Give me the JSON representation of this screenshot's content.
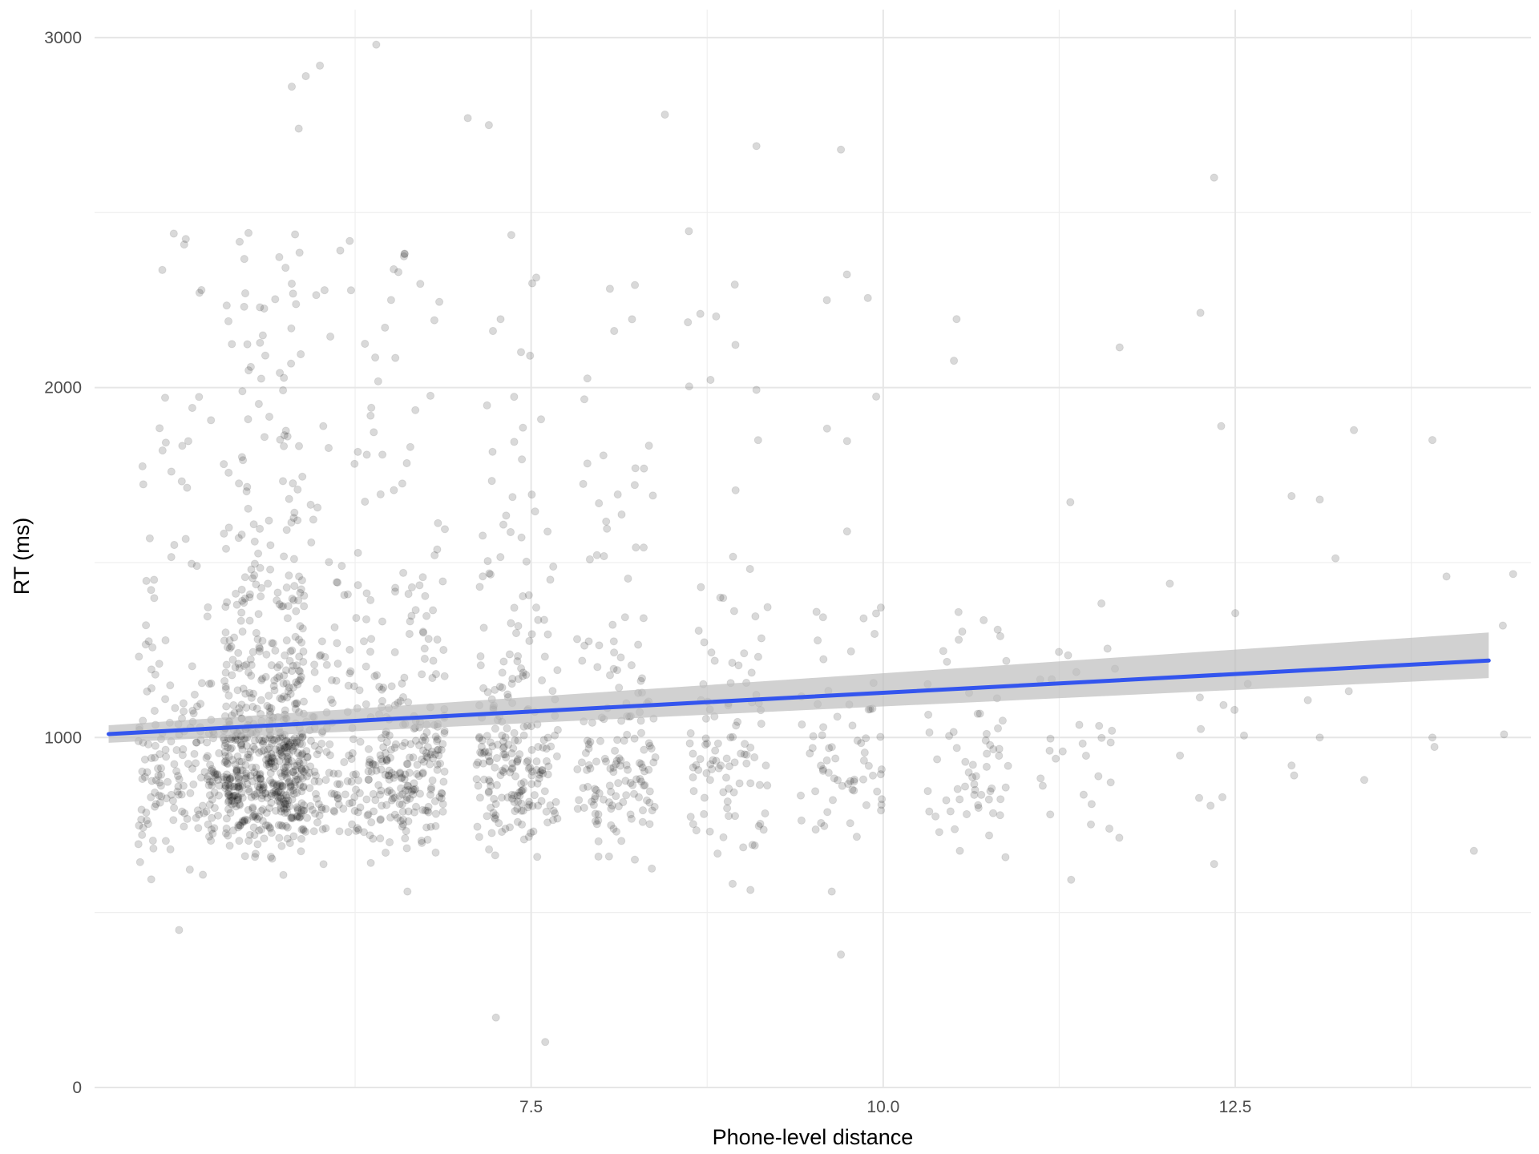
{
  "chart_data": {
    "type": "scatter",
    "xlabel": "Phone-level distance",
    "ylabel": "RT (ms)",
    "xlim": [
      4.4,
      14.6
    ],
    "ylim": [
      0,
      3080
    ],
    "x_ticks": [
      7.5,
      10.0,
      12.5
    ],
    "x_tick_labels": [
      "7.5",
      "10.0",
      "12.5"
    ],
    "x_minor_ticks": [
      6.25,
      8.75,
      11.25,
      13.75
    ],
    "y_ticks": [
      0,
      1000,
      2000,
      3000
    ],
    "y_tick_labels": [
      "0",
      "1000",
      "2000",
      "3000"
    ],
    "y_minor_ticks": [
      500,
      1500,
      2500
    ],
    "grid": true,
    "point_color": "#000000",
    "point_opacity": 0.15,
    "fit_color": "#3355ee",
    "band_color": "#bdbdbd",
    "clusters": [
      {
        "x": 5.0,
        "n": 200
      },
      {
        "x": 5.6,
        "n": 600
      },
      {
        "x": 6.0,
        "n": 200
      },
      {
        "x": 6.6,
        "n": 280
      },
      {
        "x": 7.4,
        "n": 240
      },
      {
        "x": 8.1,
        "n": 160
      },
      {
        "x": 8.9,
        "n": 110
      },
      {
        "x": 9.7,
        "n": 75
      },
      {
        "x": 10.6,
        "n": 65
      },
      {
        "x": 11.4,
        "n": 32
      },
      {
        "x": 12.3,
        "n": 14
      },
      {
        "x": 13.2,
        "n": 6
      },
      {
        "x": 14.2,
        "n": 4
      }
    ],
    "notable_points": [
      {
        "x": 6.4,
        "y": 2980
      },
      {
        "x": 6.0,
        "y": 2920
      },
      {
        "x": 5.9,
        "y": 2890
      },
      {
        "x": 5.8,
        "y": 2860
      },
      {
        "x": 5.85,
        "y": 2740
      },
      {
        "x": 7.05,
        "y": 2770
      },
      {
        "x": 7.2,
        "y": 2750
      },
      {
        "x": 8.45,
        "y": 2780
      },
      {
        "x": 9.1,
        "y": 2690
      },
      {
        "x": 9.7,
        "y": 2680
      },
      {
        "x": 12.35,
        "y": 2600
      },
      {
        "x": 9.6,
        "y": 2250
      },
      {
        "x": 12.4,
        "y": 1890
      },
      {
        "x": 13.9,
        "y": 1850
      },
      {
        "x": 12.9,
        "y": 1690
      },
      {
        "x": 13.1,
        "y": 1680
      },
      {
        "x": 14.0,
        "y": 1460
      },
      {
        "x": 14.4,
        "y": 1320
      },
      {
        "x": 13.9,
        "y": 1000
      },
      {
        "x": 13.1,
        "y": 1000
      },
      {
        "x": 12.9,
        "y": 920
      },
      {
        "x": 5.0,
        "y": 450
      },
      {
        "x": 7.25,
        "y": 200
      },
      {
        "x": 7.6,
        "y": 130
      },
      {
        "x": 9.7,
        "y": 380
      }
    ],
    "fit_line": {
      "x": [
        4.5,
        14.3
      ],
      "y": [
        1010,
        1220
      ],
      "ci_low": [
        985,
        1170
      ],
      "ci_high": [
        1035,
        1300
      ]
    }
  }
}
